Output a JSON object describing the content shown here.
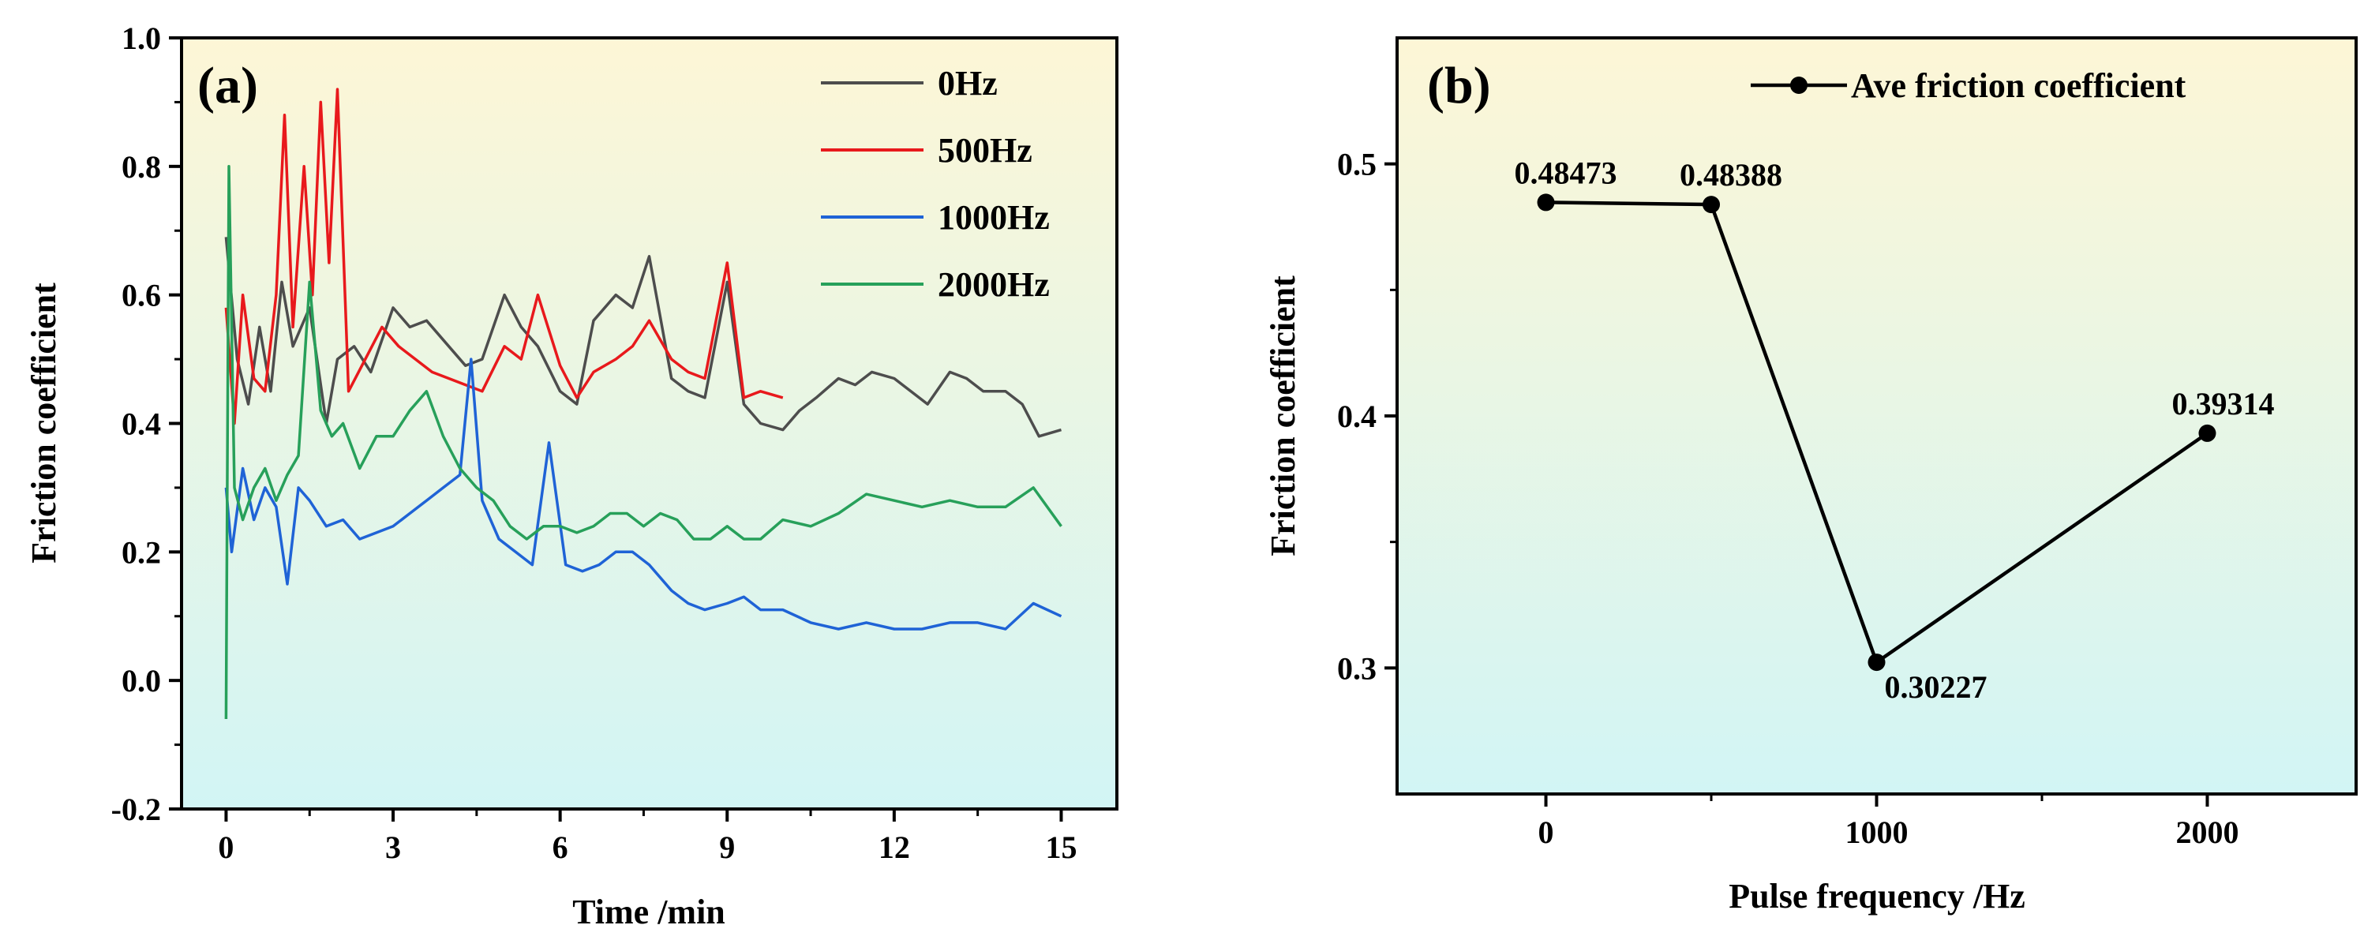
{
  "chart_data": [
    {
      "type": "line",
      "panel_label": "(a)",
      "xlabel": "Time /min",
      "ylabel": "Friction coefficient",
      "xlim": [
        -0.8,
        16.0
      ],
      "ylim": [
        -0.2,
        1.0
      ],
      "xticks": [
        0,
        3,
        6,
        9,
        12,
        15
      ],
      "xtick_labels": [
        "0",
        "3",
        "6",
        "9",
        "12",
        "15"
      ],
      "yticks": [
        -0.2,
        0.0,
        0.2,
        0.4,
        0.6,
        0.8,
        1.0
      ],
      "ytick_labels": [
        "-0.2",
        "0.0",
        "0.2",
        "0.4",
        "0.6",
        "0.8",
        "1.0"
      ],
      "legend_position": "top-right",
      "series": [
        {
          "name": "0Hz",
          "color": "#4d4d4d",
          "x": [
            0,
            0.2,
            0.4,
            0.6,
            0.8,
            1.0,
            1.2,
            1.5,
            1.8,
            2.0,
            2.3,
            2.6,
            3.0,
            3.3,
            3.6,
            4.0,
            4.3,
            4.6,
            5.0,
            5.3,
            5.6,
            6.0,
            6.3,
            6.6,
            7.0,
            7.3,
            7.6,
            8.0,
            8.3,
            8.6,
            9.0,
            9.3,
            9.6,
            10.0,
            10.3,
            10.6,
            11.0,
            11.3,
            11.6,
            12.0,
            12.3,
            12.6,
            13.0,
            13.3,
            13.6,
            14.0,
            14.3,
            14.6,
            15.0
          ],
          "y": [
            0.69,
            0.5,
            0.43,
            0.55,
            0.45,
            0.62,
            0.52,
            0.58,
            0.4,
            0.5,
            0.52,
            0.48,
            0.58,
            0.55,
            0.56,
            0.52,
            0.49,
            0.5,
            0.6,
            0.55,
            0.52,
            0.45,
            0.43,
            0.56,
            0.6,
            0.58,
            0.66,
            0.47,
            0.45,
            0.44,
            0.62,
            0.43,
            0.4,
            0.39,
            0.42,
            0.44,
            0.47,
            0.46,
            0.48,
            0.47,
            0.45,
            0.43,
            0.48,
            0.47,
            0.45,
            0.45,
            0.43,
            0.38,
            0.39
          ]
        },
        {
          "name": "500Hz",
          "color": "#e8191c",
          "x": [
            0,
            0.15,
            0.3,
            0.5,
            0.7,
            0.9,
            1.05,
            1.2,
            1.4,
            1.55,
            1.7,
            1.85,
            2.0,
            2.2,
            2.5,
            2.8,
            3.1,
            3.4,
            3.7,
            4.0,
            4.3,
            4.6,
            5.0,
            5.3,
            5.6,
            6.0,
            6.3,
            6.6,
            7.0,
            7.3,
            7.6,
            8.0,
            8.3,
            8.6,
            9.0,
            9.3,
            9.6,
            10.0
          ],
          "y": [
            0.58,
            0.4,
            0.6,
            0.47,
            0.45,
            0.6,
            0.88,
            0.55,
            0.8,
            0.6,
            0.9,
            0.65,
            0.92,
            0.45,
            0.5,
            0.55,
            0.52,
            0.5,
            0.48,
            0.47,
            0.46,
            0.45,
            0.52,
            0.5,
            0.6,
            0.49,
            0.44,
            0.48,
            0.5,
            0.52,
            0.56,
            0.5,
            0.48,
            0.47,
            0.65,
            0.44,
            0.45,
            0.44
          ]
        },
        {
          "name": "1000Hz",
          "color": "#1f63d6",
          "x": [
            0,
            0.1,
            0.3,
            0.5,
            0.7,
            0.9,
            1.1,
            1.3,
            1.5,
            1.8,
            2.1,
            2.4,
            2.7,
            3.0,
            3.3,
            3.6,
            3.9,
            4.2,
            4.4,
            4.6,
            4.9,
            5.2,
            5.5,
            5.8,
            6.1,
            6.4,
            6.7,
            7.0,
            7.3,
            7.6,
            8.0,
            8.3,
            8.6,
            9.0,
            9.3,
            9.6,
            10.0,
            10.5,
            11.0,
            11.5,
            12.0,
            12.5,
            13.0,
            13.5,
            14.0,
            14.5,
            15.0
          ],
          "y": [
            0.3,
            0.2,
            0.33,
            0.25,
            0.3,
            0.27,
            0.15,
            0.3,
            0.28,
            0.24,
            0.25,
            0.22,
            0.23,
            0.24,
            0.26,
            0.28,
            0.3,
            0.32,
            0.5,
            0.28,
            0.22,
            0.2,
            0.18,
            0.37,
            0.18,
            0.17,
            0.18,
            0.2,
            0.2,
            0.18,
            0.14,
            0.12,
            0.11,
            0.12,
            0.13,
            0.11,
            0.11,
            0.09,
            0.08,
            0.09,
            0.08,
            0.08,
            0.09,
            0.09,
            0.08,
            0.12,
            0.1
          ]
        },
        {
          "name": "2000Hz",
          "color": "#27a05a",
          "x": [
            0,
            0.05,
            0.15,
            0.3,
            0.5,
            0.7,
            0.9,
            1.1,
            1.3,
            1.5,
            1.7,
            1.9,
            2.1,
            2.4,
            2.7,
            3.0,
            3.3,
            3.6,
            3.9,
            4.2,
            4.5,
            4.8,
            5.1,
            5.4,
            5.7,
            6.0,
            6.3,
            6.6,
            6.9,
            7.2,
            7.5,
            7.8,
            8.1,
            8.4,
            8.7,
            9.0,
            9.3,
            9.6,
            10.0,
            10.5,
            11.0,
            11.5,
            12.0,
            12.5,
            13.0,
            13.5,
            14.0,
            14.5,
            15.0
          ],
          "y": [
            -0.06,
            0.8,
            0.3,
            0.25,
            0.3,
            0.33,
            0.28,
            0.32,
            0.35,
            0.62,
            0.42,
            0.38,
            0.4,
            0.33,
            0.38,
            0.38,
            0.42,
            0.45,
            0.38,
            0.33,
            0.3,
            0.28,
            0.24,
            0.22,
            0.24,
            0.24,
            0.23,
            0.24,
            0.26,
            0.26,
            0.24,
            0.26,
            0.25,
            0.22,
            0.22,
            0.24,
            0.22,
            0.22,
            0.25,
            0.24,
            0.26,
            0.29,
            0.28,
            0.27,
            0.28,
            0.27,
            0.27,
            0.3,
            0.24
          ]
        }
      ]
    },
    {
      "type": "line",
      "panel_label": "(b)",
      "xlabel": "Pulse frequency /Hz",
      "ylabel": "Friction coefficient",
      "xlim": [
        -450,
        2450
      ],
      "ylim": [
        0.25,
        0.55
      ],
      "xticks": [
        0,
        1000,
        2000
      ],
      "xtick_labels": [
        "0",
        "1000",
        "2000"
      ],
      "yticks": [
        0.3,
        0.4,
        0.5
      ],
      "ytick_labels": [
        "0.3",
        "0.4",
        "0.5"
      ],
      "legend_position": "top-right",
      "series": [
        {
          "name": "Ave friction coefficient",
          "color": "#000000",
          "x": [
            0,
            500,
            1000,
            2000
          ],
          "y": [
            0.48473,
            0.48388,
            0.30227,
            0.39314
          ],
          "labels": [
            "0.48473",
            "0.48388",
            "0.30227",
            "0.39314"
          ]
        }
      ]
    }
  ]
}
